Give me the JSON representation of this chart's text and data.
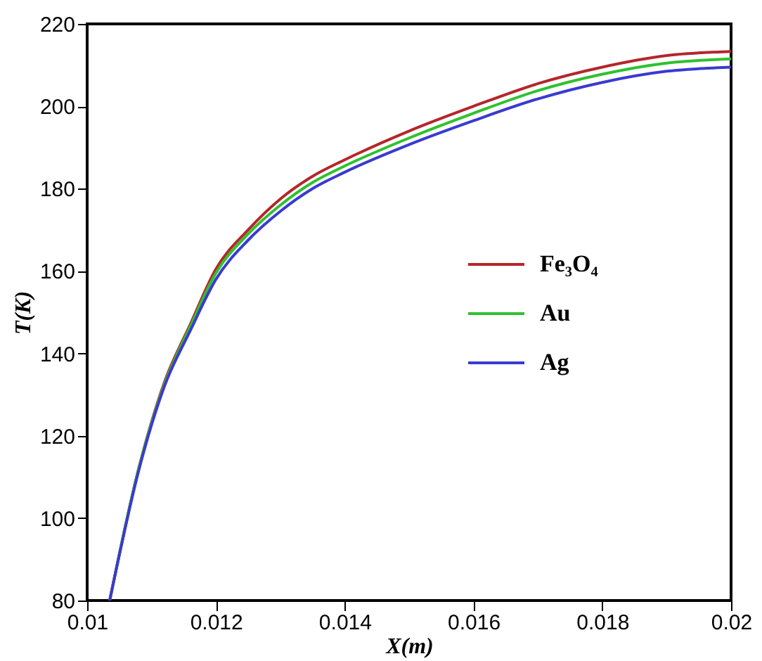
{
  "chart_data": {
    "type": "line",
    "xlabel": "X(m)",
    "ylabel": "T(K)",
    "x": [
      0.01035,
      0.0108,
      0.0112,
      0.0116,
      0.012,
      0.0125,
      0.013,
      0.0135,
      0.014,
      0.015,
      0.016,
      0.017,
      0.018,
      0.019,
      0.02
    ],
    "series": [
      {
        "name": "Fe₃O₄",
        "color": "#b5262b",
        "values": [
          80,
          112,
          133,
          147,
          160.5,
          170,
          177.5,
          183,
          187,
          194,
          200,
          205.5,
          209.5,
          212.3,
          213.3
        ]
      },
      {
        "name": "Au",
        "color": "#2fc12f",
        "values": [
          80,
          112,
          132.5,
          146.5,
          159.5,
          169,
          176,
          181.5,
          185.5,
          192.3,
          198.3,
          203.8,
          207.8,
          210.5,
          211.5
        ]
      },
      {
        "name": "Ag",
        "color": "#3a3ad0",
        "values": [
          80,
          111.5,
          132,
          145.5,
          158,
          167.5,
          174.5,
          180,
          184,
          190.7,
          196.5,
          201.8,
          205.8,
          208.5,
          209.5
        ]
      }
    ],
    "xlim": [
      0.01,
      0.02
    ],
    "xticks": [
      0.01,
      0.012,
      0.014,
      0.016,
      0.018,
      0.02
    ],
    "ylim": [
      80,
      220
    ],
    "yticks": [
      80,
      100,
      120,
      140,
      160,
      180,
      200,
      220
    ],
    "grid": false,
    "legend": "right",
    "marker": "none",
    "line_style": "solid"
  }
}
